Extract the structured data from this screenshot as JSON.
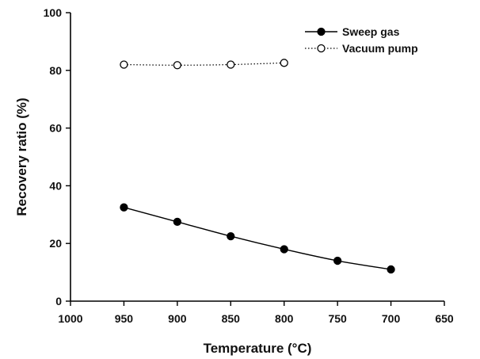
{
  "chart_data": {
    "type": "line",
    "xlabel": "Temperature (°C)",
    "ylabel": "Recovery ratio (%)",
    "xlim": [
      1000,
      650
    ],
    "ylim": [
      0,
      100
    ],
    "x_reversed": true,
    "x_ticks": [
      "1000",
      "950",
      "900",
      "850",
      "800",
      "750",
      "700",
      "650"
    ],
    "y_ticks": [
      "0",
      "20",
      "40",
      "60",
      "80",
      "100"
    ],
    "grid": false,
    "legend_position": "top-right",
    "series": [
      {
        "name": "Sweep gas",
        "marker": "filled-circle",
        "line_style": "solid",
        "color": "#000000",
        "x": [
          950,
          900,
          850,
          800,
          750,
          700
        ],
        "y": [
          32.5,
          27.5,
          22.5,
          18.0,
          14.0,
          11.0
        ]
      },
      {
        "name": "Vacuum pump",
        "marker": "open-circle",
        "line_style": "dotted",
        "color": "#000000",
        "x": [
          950,
          900,
          850,
          800
        ],
        "y": [
          82.0,
          81.8,
          82.0,
          82.6
        ]
      }
    ]
  }
}
